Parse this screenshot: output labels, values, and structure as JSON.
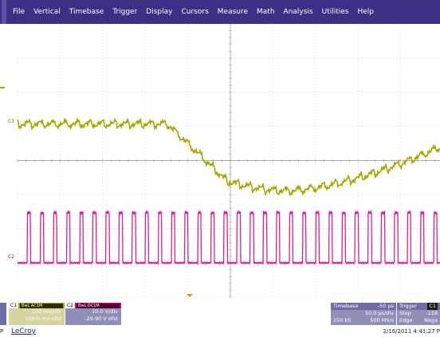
{
  "menu": [
    "File",
    "Vertical",
    "Timebase",
    "Trigger",
    "Display",
    "Cursors",
    "Measure",
    "Math",
    "Analysis",
    "Utilities",
    "Help"
  ],
  "traces": {
    "c1_label": "C1",
    "c2_label": "C2",
    "c1_color": "#a6a600",
    "c2_color": "#e0208a",
    "grid_color": "#b8b8b8"
  },
  "channel1": {
    "name": "C1",
    "coupling": "BwL  AC1M",
    "vdiv": "100 mV/div",
    "offset": "100.0 mV ofst"
  },
  "channel2": {
    "name": "C2",
    "coupling": "BwL  DC1M",
    "vdiv": "10.0 V/div",
    "offset": "-29.90 V ofst"
  },
  "timebase": {
    "label": "Timebase",
    "delay": "-50 µs",
    "tdiv": "50.0 µs/div",
    "samples": "250 kS",
    "rate": "500 MS/s"
  },
  "trigger": {
    "label": "Trigger",
    "channel": "C1",
    "mode": "Stop",
    "level": "-118",
    "type": "Edge",
    "slope": "Nega"
  },
  "brand": "LeCroy",
  "timestamp": "2/16/2011 4:41:27 P",
  "left_p": "P"
}
